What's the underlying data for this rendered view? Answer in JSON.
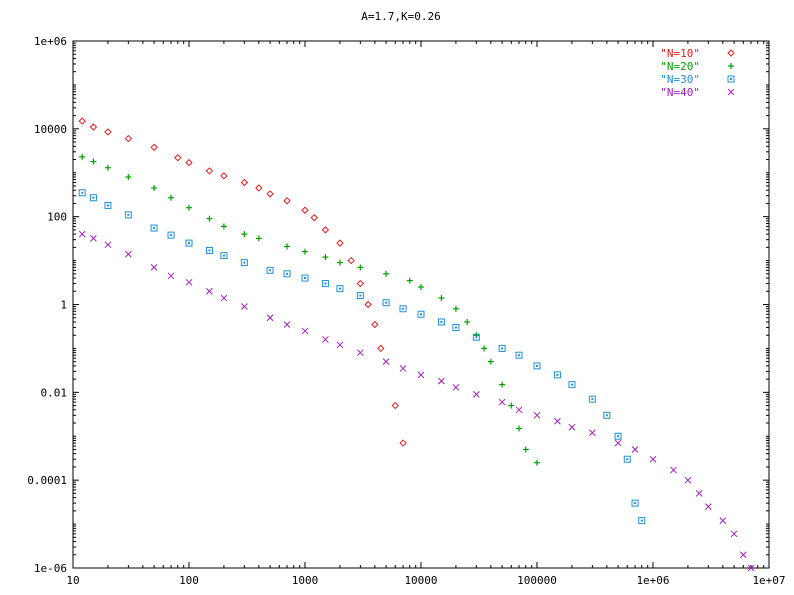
{
  "chart_data": {
    "type": "scatter",
    "title": "A=1.7,K=0.26",
    "xlabel": "",
    "ylabel": "",
    "x_scale": "log",
    "y_scale": "log",
    "xlim": [
      10,
      10000000
    ],
    "ylim": [
      1e-06,
      1000000
    ],
    "x_ticks": [
      {
        "value": 10,
        "label": "10"
      },
      {
        "value": 100,
        "label": "100"
      },
      {
        "value": 1000,
        "label": "1000"
      },
      {
        "value": 10000,
        "label": "10000"
      },
      {
        "value": 100000,
        "label": "100000"
      },
      {
        "value": 1000000,
        "label": "1e+06"
      },
      {
        "value": 10000000,
        "label": "1e+07"
      }
    ],
    "y_ticks": [
      {
        "value": 1e-06,
        "label": "1e-06"
      },
      {
        "value": 0.0001,
        "label": "0.0001"
      },
      {
        "value": 0.01,
        "label": "0.01"
      },
      {
        "value": 1,
        "label": "1"
      },
      {
        "value": 100,
        "label": "100"
      },
      {
        "value": 10000,
        "label": "10000"
      },
      {
        "value": 1000000,
        "label": "1e+06"
      }
    ],
    "grid": false,
    "legend_position": "top-right",
    "series": [
      {
        "name": "\"N=10\"",
        "color": "#e0201c",
        "marker": "diamond",
        "points": [
          [
            12,
            15000
          ],
          [
            15,
            11000
          ],
          [
            20,
            8500
          ],
          [
            30,
            6000
          ],
          [
            50,
            3800
          ],
          [
            80,
            2200
          ],
          [
            100,
            1700
          ],
          [
            150,
            1100
          ],
          [
            200,
            850
          ],
          [
            300,
            600
          ],
          [
            400,
            450
          ],
          [
            500,
            330
          ],
          [
            700,
            230
          ],
          [
            1000,
            140
          ],
          [
            1200,
            95
          ],
          [
            1500,
            50
          ],
          [
            2000,
            25
          ],
          [
            2500,
            10
          ],
          [
            3000,
            3
          ],
          [
            3500,
            1
          ],
          [
            4000,
            0.35
          ],
          [
            4500,
            0.1
          ],
          [
            6000,
            0.005
          ],
          [
            7000,
            0.0007
          ]
        ]
      },
      {
        "name": "\"N=20\"",
        "color": "#00a000",
        "marker": "plus",
        "points": [
          [
            12,
            2300
          ],
          [
            15,
            1800
          ],
          [
            20,
            1300
          ],
          [
            30,
            800
          ],
          [
            50,
            450
          ],
          [
            70,
            270
          ],
          [
            100,
            160
          ],
          [
            150,
            90
          ],
          [
            200,
            60
          ],
          [
            300,
            40
          ],
          [
            400,
            32
          ],
          [
            700,
            21
          ],
          [
            1000,
            16
          ],
          [
            1500,
            12
          ],
          [
            2000,
            9
          ],
          [
            3000,
            7
          ],
          [
            5000,
            5
          ],
          [
            8000,
            3.5
          ],
          [
            10000,
            2.5
          ],
          [
            15000,
            1.4
          ],
          [
            20000,
            0.8
          ],
          [
            25000,
            0.4
          ],
          [
            30000,
            0.2
          ],
          [
            35000,
            0.1
          ],
          [
            40000,
            0.05
          ],
          [
            50000,
            0.015
          ],
          [
            60000,
            0.005
          ],
          [
            70000,
            0.0015
          ],
          [
            80000,
            0.0005
          ],
          [
            100000,
            0.00025
          ]
        ]
      },
      {
        "name": "\"N=30\"",
        "color": "#1f90d8",
        "marker": "square",
        "points": [
          [
            12,
            350
          ],
          [
            15,
            270
          ],
          [
            20,
            180
          ],
          [
            30,
            110
          ],
          [
            50,
            55
          ],
          [
            70,
            38
          ],
          [
            100,
            25
          ],
          [
            150,
            17
          ],
          [
            200,
            13
          ],
          [
            300,
            9
          ],
          [
            500,
            6
          ],
          [
            700,
            5
          ],
          [
            1000,
            4
          ],
          [
            1500,
            3
          ],
          [
            2000,
            2.3
          ],
          [
            3000,
            1.6
          ],
          [
            5000,
            1.1
          ],
          [
            7000,
            0.8
          ],
          [
            10000,
            0.6
          ],
          [
            15000,
            0.4
          ],
          [
            20000,
            0.3
          ],
          [
            30000,
            0.18
          ],
          [
            50000,
            0.1
          ],
          [
            70000,
            0.07
          ],
          [
            100000,
            0.04
          ],
          [
            150000,
            0.025
          ],
          [
            200000,
            0.015
          ],
          [
            300000,
            0.007
          ],
          [
            400000,
            0.003
          ],
          [
            500000,
            0.001
          ],
          [
            600000,
            0.0003
          ],
          [
            700000,
            3e-05
          ],
          [
            800000,
            1.2e-05
          ]
        ]
      },
      {
        "name": "\"N=40\"",
        "color": "#a020c0",
        "marker": "cross",
        "points": [
          [
            12,
            40
          ],
          [
            15,
            32
          ],
          [
            20,
            23
          ],
          [
            30,
            14
          ],
          [
            50,
            7
          ],
          [
            70,
            4.5
          ],
          [
            100,
            3.2
          ],
          [
            150,
            2
          ],
          [
            200,
            1.4
          ],
          [
            300,
            0.9
          ],
          [
            500,
            0.5
          ],
          [
            700,
            0.35
          ],
          [
            1000,
            0.25
          ],
          [
            1500,
            0.16
          ],
          [
            2000,
            0.12
          ],
          [
            3000,
            0.08
          ],
          [
            5000,
            0.05
          ],
          [
            7000,
            0.035
          ],
          [
            10000,
            0.025
          ],
          [
            15000,
            0.018
          ],
          [
            20000,
            0.013
          ],
          [
            30000,
            0.009
          ],
          [
            50000,
            0.006
          ],
          [
            70000,
            0.004
          ],
          [
            100000,
            0.003
          ],
          [
            150000,
            0.0022
          ],
          [
            200000,
            0.0016
          ],
          [
            300000,
            0.0012
          ],
          [
            500000,
            0.0007
          ],
          [
            700000,
            0.0005
          ],
          [
            1000000,
            0.0003
          ],
          [
            1500000,
            0.00017
          ],
          [
            2000000,
            0.0001
          ],
          [
            2500000,
            5e-05
          ],
          [
            3000000,
            2.5e-05
          ],
          [
            4000000,
            1.2e-05
          ],
          [
            5000000,
            6e-06
          ],
          [
            6000000,
            2e-06
          ],
          [
            7000000,
            1e-06
          ]
        ]
      }
    ]
  }
}
